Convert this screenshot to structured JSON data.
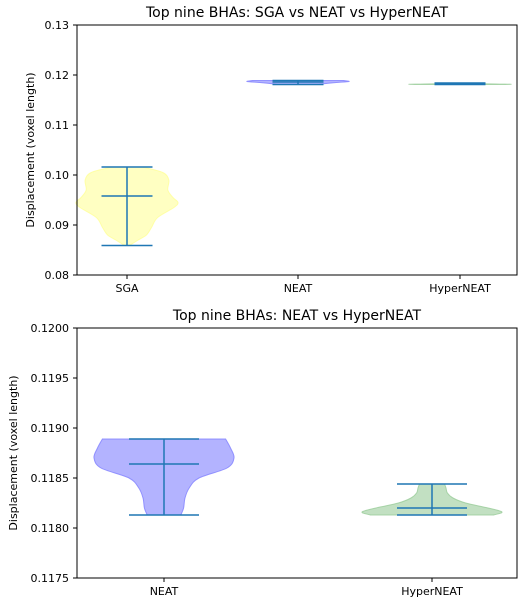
{
  "chart_data": [
    {
      "type": "violin",
      "title": "Top nine BHAs: SGA vs NEAT vs HyperNEAT",
      "ylabel": "Displacement (voxel length)",
      "ylim": [
        0.08,
        0.13
      ],
      "yticks": [
        0.08,
        0.09,
        0.1,
        0.11,
        0.12,
        0.13
      ],
      "ytick_labels": [
        "0.08",
        "0.09",
        "0.10",
        "0.11",
        "0.12",
        "0.13"
      ],
      "grid": false,
      "series": [
        {
          "label": "SGA",
          "fill": "#ffff99",
          "min": 0.0859,
          "max": 0.1016,
          "mean": 0.0958,
          "profile": [
            [
              0.0859,
              0.05
            ],
            [
              0.087,
              0.22
            ],
            [
              0.088,
              0.38
            ],
            [
              0.0895,
              0.48
            ],
            [
              0.0915,
              0.6
            ],
            [
              0.0935,
              0.92
            ],
            [
              0.0945,
              1.0
            ],
            [
              0.0955,
              0.9
            ],
            [
              0.097,
              0.8
            ],
            [
              0.099,
              0.82
            ],
            [
              0.1005,
              0.7
            ],
            [
              0.1016,
              0.3
            ]
          ]
        },
        {
          "label": "NEAT",
          "fill": "#8080ff",
          "min": 0.1181,
          "max": 0.1189,
          "mean": 0.1186,
          "profile": [
            [
              0.1181,
              0.4
            ],
            [
              0.1183,
              0.55
            ],
            [
              0.1185,
              0.75
            ],
            [
              0.1187,
              1.0
            ],
            [
              0.1189,
              0.9
            ]
          ]
        },
        {
          "label": "HyperNEAT",
          "fill": "#99cc99",
          "min": 0.1181,
          "max": 0.1184,
          "mean": 0.1182,
          "profile": [
            [
              0.1181,
              0.85
            ],
            [
              0.11815,
              1.0
            ],
            [
              0.1182,
              0.7
            ],
            [
              0.1183,
              0.3
            ],
            [
              0.1184,
              0.2
            ]
          ]
        }
      ]
    },
    {
      "type": "violin",
      "title": "Top nine BHAs: NEAT vs HyperNEAT",
      "ylabel": "Displacement (voxel length)",
      "ylim": [
        0.1175,
        0.12
      ],
      "yticks": [
        0.1175,
        0.118,
        0.1185,
        0.119,
        0.1195,
        0.12
      ],
      "ytick_labels": [
        "0.1175",
        "0.1180",
        "0.1185",
        "0.1190",
        "0.1195",
        "0.1200"
      ],
      "grid": false,
      "series": [
        {
          "label": "NEAT",
          "fill": "#8080ff",
          "min": 0.11813,
          "max": 0.11889,
          "mean": 0.11864,
          "profile": [
            [
              0.11813,
              0.24
            ],
            [
              0.1182,
              0.28
            ],
            [
              0.1183,
              0.3
            ],
            [
              0.1184,
              0.36
            ],
            [
              0.1185,
              0.5
            ],
            [
              0.1186,
              0.9
            ],
            [
              0.1187,
              1.0
            ],
            [
              0.1188,
              0.95
            ],
            [
              0.11889,
              0.88
            ]
          ]
        },
        {
          "label": "HyperNEAT",
          "fill": "#99cc99",
          "min": 0.11813,
          "max": 0.11844,
          "mean": 0.1182,
          "profile": [
            [
              0.11813,
              0.88
            ],
            [
              0.11816,
              1.0
            ],
            [
              0.1182,
              0.8
            ],
            [
              0.11825,
              0.48
            ],
            [
              0.1183,
              0.3
            ],
            [
              0.11835,
              0.22
            ],
            [
              0.1184,
              0.2
            ],
            [
              0.11844,
              0.18
            ]
          ]
        }
      ]
    }
  ]
}
